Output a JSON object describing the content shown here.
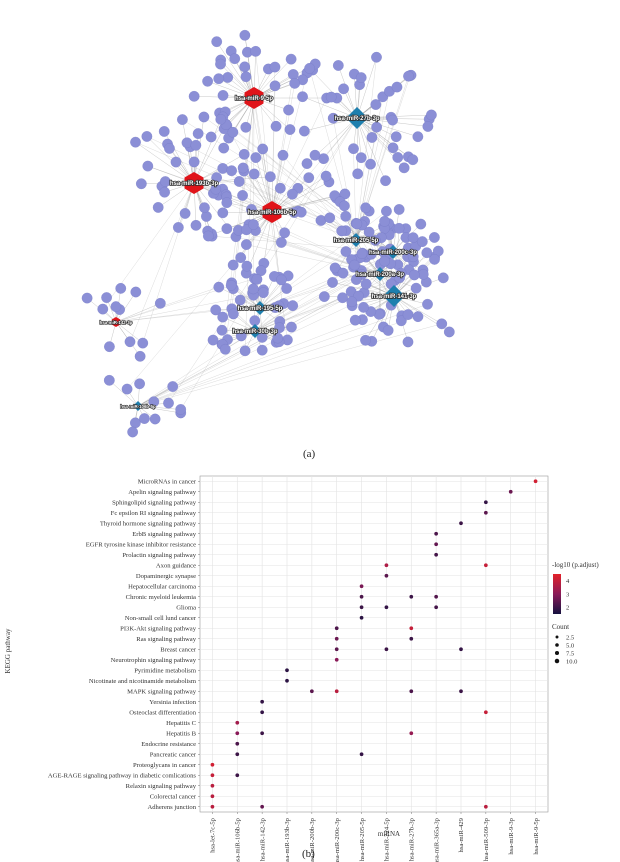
{
  "panel_a": {
    "label": "(a)",
    "mirna_hubs": [
      {
        "name": "hsa-miR-9-5p",
        "shape": "hexagon",
        "color": "#e0141a",
        "size": "large"
      },
      {
        "name": "hsa-miR-27b-3p",
        "shape": "diamond",
        "color": "#1e7fae",
        "size": "large"
      },
      {
        "name": "hsa-miR-193b-3p",
        "shape": "hexagon",
        "color": "#e0141a",
        "size": "large"
      },
      {
        "name": "hsa-miR-106b-5p",
        "shape": "hexagon",
        "color": "#e0141a",
        "size": "large"
      },
      {
        "name": "hsa-miR-205-5p",
        "shape": "diamond",
        "color": "#1e7fae",
        "size": "medium"
      },
      {
        "name": "hsa-miR-200c-3p",
        "shape": "diamond",
        "color": "#1e7fae",
        "size": "medium"
      },
      {
        "name": "hsa-miR-200a-3p",
        "shape": "diamond",
        "color": "#1e7fae",
        "size": "medium"
      },
      {
        "name": "hsa-miR-141-3p",
        "shape": "diamond",
        "color": "#1e7fae",
        "size": "large"
      },
      {
        "name": "hsa-miR-195-5p",
        "shape": "diamond",
        "color": "#1e7fae",
        "size": "medium"
      },
      {
        "name": "hsa-miR-30b-3p",
        "shape": "diamond",
        "color": "#1e7fae",
        "size": "medium"
      },
      {
        "name": "hsa-miR-106b-5p",
        "shape": "diamond",
        "color": "#1e7fae",
        "size": "small"
      },
      {
        "name": "hsa-miR-142-3p",
        "shape": "hexagon",
        "color": "#e0141a",
        "size": "small"
      }
    ],
    "gene_node_color": "#8b8fd6",
    "edge_color": "#9a9a9a"
  },
  "panel_b": {
    "label": "(b)",
    "chart_data": {
      "type": "scatter",
      "xlabel": "miRNA",
      "ylabel": "KEGG pathway",
      "x_categories": [
        "hsa-let-7c-5p",
        "hsa-miR-106b-5p",
        "hsa-miR-142-3p",
        "hsa-miR-193b-3p",
        "hsa-miR-200b-3p",
        "hsa-miR-200c-3p",
        "hsa-miR-205-5p",
        "hsa-miR-224-5p",
        "hsa-miR-27b-3p",
        "hsa-miR-365a-3p",
        "hsa-miR-429",
        "hsa-miR-509-3p",
        "hsa-miR-9-3p",
        "hsa-miR-9-5p"
      ],
      "y_categories": [
        "MicroRNAs in cancer",
        "Apelin signaling pathway",
        "Sphingolipid signaling pathway",
        "Fc epsilon RI signaling pathway",
        "Thyroid hormone signaling pathway",
        "ErbB signaling pathway",
        "EGFR tyrosine kinase inhibitor resistance",
        "Prolactin signaling pathway",
        "Axon guidance",
        "Dopaminergic synapse",
        "Hepatocellular carcinoma",
        "Chronic myeloid leukemia",
        "Glioma",
        "Non-small cell lund cancer",
        "PI3K-Akt signaling pathway",
        "Ras signaling pathway",
        "Breast cancer",
        "Neurotrophin signaling pathway",
        "Pyrimidine metabolism",
        "Nicotinate and nicotinamide metabolism",
        "MAPK signaling pathway",
        "Yersinia infection",
        "Osteoclast differentiation",
        "Hepatitis C",
        "Hepatitis B",
        "Endocrine resistance",
        "Pancreatic cancer",
        "Proteoglycans in cancer",
        "AGE-RAGE signaling pathway in diabetic comlications",
        "Relaxin signaling pathway",
        "Colorectal cancer",
        "Adherens junction"
      ],
      "points": [
        {
          "x": "hsa-miR-9-5p",
          "y": "MicroRNAs in cancer",
          "p": 4.2,
          "count": 2.5
        },
        {
          "x": "hsa-miR-9-3p",
          "y": "Apelin signaling pathway",
          "p": 2.6,
          "count": 2.5
        },
        {
          "x": "hsa-miR-509-3p",
          "y": "Sphingolipid signaling pathway",
          "p": 1.9,
          "count": 2.5
        },
        {
          "x": "hsa-miR-509-3p",
          "y": "Fc epsilon RI signaling pathway",
          "p": 2.4,
          "count": 2.5
        },
        {
          "x": "hsa-miR-429",
          "y": "Thyroid hormone signaling pathway",
          "p": 2.0,
          "count": 2.5
        },
        {
          "x": "hsa-miR-365a-3p",
          "y": "ErbB signaling pathway",
          "p": 2.2,
          "count": 2.5
        },
        {
          "x": "hsa-miR-365a-3p",
          "y": "EGFR tyrosine kinase inhibitor resistance",
          "p": 2.5,
          "count": 2.5
        },
        {
          "x": "hsa-miR-365a-3p",
          "y": "Prolactin signaling pathway",
          "p": 2.1,
          "count": 2.5
        },
        {
          "x": "hsa-miR-224-5p",
          "y": "Axon guidance",
          "p": 3.6,
          "count": 2.5
        },
        {
          "x": "hsa-miR-509-3p",
          "y": "Axon guidance",
          "p": 4.0,
          "count": 2.5
        },
        {
          "x": "hsa-miR-224-5p",
          "y": "Dopaminergic synapse",
          "p": 2.4,
          "count": 2.5
        },
        {
          "x": "hsa-miR-205-5p",
          "y": "Hepatocellular carcinoma",
          "p": 2.8,
          "count": 2.5
        },
        {
          "x": "hsa-miR-205-5p",
          "y": "Chronic myeloid leukemia",
          "p": 2.2,
          "count": 2.5
        },
        {
          "x": "hsa-miR-27b-3p",
          "y": "Chronic myeloid leukemia",
          "p": 2.0,
          "count": 2.5
        },
        {
          "x": "hsa-miR-365a-3p",
          "y": "Chronic myeloid leukemia",
          "p": 2.3,
          "count": 2.5
        },
        {
          "x": "hsa-miR-205-5p",
          "y": "Glioma",
          "p": 2.0,
          "count": 2.5
        },
        {
          "x": "hsa-miR-224-5p",
          "y": "Glioma",
          "p": 1.9,
          "count": 2.5
        },
        {
          "x": "hsa-miR-365a-3p",
          "y": "Glioma",
          "p": 2.1,
          "count": 2.5
        },
        {
          "x": "hsa-miR-205-5p",
          "y": "Non-small cell lund cancer",
          "p": 1.8,
          "count": 2.5
        },
        {
          "x": "hsa-miR-200c-3p",
          "y": "PI3K-Akt signaling pathway",
          "p": 2.2,
          "count": 2.5
        },
        {
          "x": "hsa-miR-27b-3p",
          "y": "PI3K-Akt signaling pathway",
          "p": 4.0,
          "count": 2.5
        },
        {
          "x": "hsa-miR-200c-3p",
          "y": "Ras signaling pathway",
          "p": 2.6,
          "count": 2.5
        },
        {
          "x": "hsa-miR-27b-3p",
          "y": "Ras signaling pathway",
          "p": 2.0,
          "count": 2.5
        },
        {
          "x": "hsa-miR-200c-3p",
          "y": "Breast cancer",
          "p": 2.4,
          "count": 2.5
        },
        {
          "x": "hsa-miR-224-5p",
          "y": "Breast cancer",
          "p": 2.0,
          "count": 2.5
        },
        {
          "x": "hsa-miR-429",
          "y": "Breast cancer",
          "p": 1.9,
          "count": 2.5
        },
        {
          "x": "hsa-miR-200c-3p",
          "y": "Neurotrophin signaling pathway",
          "p": 3.0,
          "count": 2.5
        },
        {
          "x": "hsa-miR-193b-3p",
          "y": "Pyrimidine metabolism",
          "p": 1.8,
          "count": 2.5
        },
        {
          "x": "hsa-miR-193b-3p",
          "y": "Nicotinate and nicotinamide metabolism",
          "p": 1.8,
          "count": 2.5
        },
        {
          "x": "hsa-miR-200b-3p",
          "y": "MAPK signaling pathway",
          "p": 2.4,
          "count": 2.5
        },
        {
          "x": "hsa-miR-200c-3p",
          "y": "MAPK signaling pathway",
          "p": 3.8,
          "count": 2.5
        },
        {
          "x": "hsa-miR-27b-3p",
          "y": "MAPK signaling pathway",
          "p": 2.2,
          "count": 2.5
        },
        {
          "x": "hsa-miR-429",
          "y": "MAPK signaling pathway",
          "p": 2.0,
          "count": 2.5
        },
        {
          "x": "hsa-miR-142-3p",
          "y": "Yersinia infection",
          "p": 1.9,
          "count": 2.5
        },
        {
          "x": "hsa-miR-142-3p",
          "y": "Osteoclast differentiation",
          "p": 1.9,
          "count": 2.5
        },
        {
          "x": "hsa-miR-509-3p",
          "y": "Osteoclast differentiation",
          "p": 4.0,
          "count": 2.5
        },
        {
          "x": "hsa-miR-106b-5p",
          "y": "Hepatitis C",
          "p": 3.4,
          "count": 2.5
        },
        {
          "x": "hsa-miR-106b-5p",
          "y": "Hepatitis B",
          "p": 3.0,
          "count": 2.5
        },
        {
          "x": "hsa-miR-142-3p",
          "y": "Hepatitis B",
          "p": 2.0,
          "count": 2.5
        },
        {
          "x": "hsa-miR-27b-3p",
          "y": "Hepatitis B",
          "p": 3.2,
          "count": 2.5
        },
        {
          "x": "hsa-miR-106b-5p",
          "y": "Endocrine resistance",
          "p": 2.2,
          "count": 2.5
        },
        {
          "x": "hsa-miR-205-5p",
          "y": "Pancreatic cancer",
          "p": 1.9,
          "count": 2.5
        },
        {
          "x": "hsa-miR-106b-5p",
          "y": "Pancreatic cancer",
          "p": 2.0,
          "count": 2.5
        },
        {
          "x": "hsa-let-7c-5p",
          "y": "Proteoglycans in cancer",
          "p": 4.2,
          "count": 2.5
        },
        {
          "x": "hsa-let-7c-5p",
          "y": "AGE-RAGE signaling pathway in diabetic comlications",
          "p": 4.0,
          "count": 2.5
        },
        {
          "x": "hsa-miR-106b-5p",
          "y": "AGE-RAGE signaling pathway in diabetic comlications",
          "p": 2.0,
          "count": 2.5
        },
        {
          "x": "hsa-let-7c-5p",
          "y": "Relaxin signaling pathway",
          "p": 3.8,
          "count": 2.5
        },
        {
          "x": "hsa-let-7c-5p",
          "y": "Colorectal cancer",
          "p": 3.8,
          "count": 2.5
        },
        {
          "x": "hsa-let-7c-5p",
          "y": "Adherens junction",
          "p": 3.8,
          "count": 2.5
        },
        {
          "x": "hsa-miR-142-3p",
          "y": "Adherens junction",
          "p": 2.5,
          "count": 2.5
        },
        {
          "x": "hsa-miR-509-3p",
          "y": "Adherens junction",
          "p": 3.8,
          "count": 2.5
        }
      ],
      "legend": {
        "color_title": "-log10 (p.adjust)",
        "color_ticks": [
          "4",
          "3",
          "2"
        ],
        "color_range": [
          1.5,
          4.5
        ],
        "color_low": "#15123f",
        "color_mid": "#8a1a58",
        "color_high": "#e3222a",
        "size_title": "Count",
        "size_ticks": [
          "2.5",
          "5.0",
          "7.5",
          "10.0"
        ],
        "placement": "right"
      },
      "grid": true
    }
  }
}
